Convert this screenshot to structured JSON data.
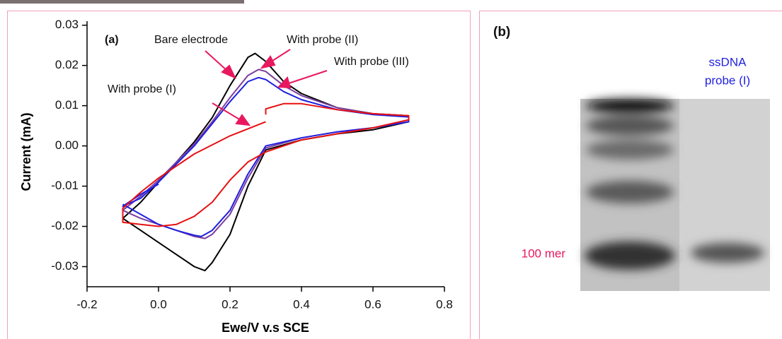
{
  "chart_data": {
    "type": "line",
    "panel_label": "(a)",
    "x_label": "Ewe/V v.s SCE",
    "y_label": "Current (mA)",
    "xlim": [
      -0.2,
      0.8
    ],
    "ylim": [
      -0.035,
      0.031
    ],
    "xticks": [
      {
        "value": -0.2,
        "label": "-0.2"
      },
      {
        "value": 0,
        "label": "0.0"
      },
      {
        "value": 0.2,
        "label": "0.2"
      },
      {
        "value": 0.4,
        "label": "0.4"
      },
      {
        "value": 0.6,
        "label": "0.6"
      },
      {
        "value": 0.8,
        "label": "0.8"
      }
    ],
    "yticks": [
      {
        "value": 0.03,
        "label": "0.03"
      },
      {
        "value": 0.02,
        "label": "0.02"
      },
      {
        "value": 0.01,
        "label": "0.01"
      },
      {
        "value": 0,
        "label": "0.00"
      },
      {
        "value": -0.01,
        "label": "-0.01"
      },
      {
        "value": -0.02,
        "label": "-0.02"
      },
      {
        "value": -0.03,
        "label": "-0.03"
      }
    ],
    "series": [
      {
        "name": "Bare electrode",
        "color": "#000000",
        "x": [
          -0.1,
          -0.05,
          0,
          0.05,
          0.1,
          0.15,
          0.2,
          0.25,
          0.27,
          0.3,
          0.35,
          0.4,
          0.5,
          0.6,
          0.7,
          0.7,
          0.6,
          0.5,
          0.4,
          0.3,
          0.25,
          0.2,
          0.15,
          0.13,
          0.1,
          0.05,
          0,
          -0.05,
          -0.1
        ],
        "values": [
          -0.018,
          -0.014,
          -0.009,
          -0.004,
          0.001,
          0.007,
          0.015,
          0.022,
          0.023,
          0.021,
          0.016,
          0.013,
          0.0095,
          0.008,
          0.0075,
          0.006,
          0.004,
          0.003,
          0.0015,
          -0.001,
          -0.01,
          -0.022,
          -0.029,
          -0.031,
          -0.03,
          -0.027,
          -0.024,
          -0.021,
          -0.018
        ]
      },
      {
        "name": "With probe (II)",
        "color": "#7b3fa0",
        "x": [
          -0.1,
          -0.05,
          0,
          0.05,
          0.1,
          0.15,
          0.2,
          0.25,
          0.28,
          0.3,
          0.35,
          0.4,
          0.5,
          0.6,
          0.7,
          0.7,
          0.6,
          0.5,
          0.4,
          0.3,
          0.25,
          0.2,
          0.15,
          0.13,
          0.1,
          0.05,
          0,
          -0.05,
          -0.1
        ],
        "values": [
          -0.016,
          -0.0125,
          -0.0085,
          -0.004,
          0.0005,
          0.006,
          0.012,
          0.0175,
          0.019,
          0.0185,
          0.015,
          0.0125,
          0.0095,
          0.008,
          0.0075,
          0.006,
          0.0045,
          0.0035,
          0.002,
          -0.0005,
          -0.008,
          -0.017,
          -0.022,
          -0.023,
          -0.0225,
          -0.021,
          -0.0195,
          -0.018,
          -0.016
        ]
      },
      {
        "name": "With probe (III)",
        "color": "#1f1fe0",
        "x": [
          0,
          -0.05,
          -0.1,
          -0.05,
          0,
          0.05,
          0.1,
          0.15,
          0.2,
          0.25,
          0.28,
          0.3,
          0.35,
          0.4,
          0.5,
          0.6,
          0.7,
          0.7,
          0.6,
          0.5,
          0.4,
          0.3,
          0.25,
          0.2,
          0.15,
          0.12,
          0.1,
          0.05,
          0,
          -0.05,
          -0.1
        ],
        "values": [
          -0.0095,
          -0.012,
          -0.015,
          -0.013,
          -0.009,
          -0.0045,
          0,
          0.0055,
          0.011,
          0.016,
          0.017,
          0.0165,
          0.0135,
          0.0115,
          0.009,
          0.0078,
          0.0072,
          0.006,
          0.0045,
          0.0035,
          0.002,
          0,
          -0.007,
          -0.016,
          -0.021,
          -0.0225,
          -0.0222,
          -0.021,
          -0.0195,
          -0.017,
          -0.0145
        ]
      },
      {
        "name": "With probe (I)",
        "color": "#e81010",
        "x": [
          0.3,
          0.2,
          0.1,
          0,
          -0.05,
          -0.1,
          -0.1,
          -0.05,
          0,
          0.05,
          0.1,
          0.15,
          0.2,
          0.25,
          0.3,
          0.35,
          0.4,
          0.5,
          0.6,
          0.7,
          0.7,
          0.6,
          0.5,
          0.4,
          0.35,
          0.3,
          0.3
        ],
        "values": [
          0.006,
          0.0025,
          -0.002,
          -0.008,
          -0.0115,
          -0.0155,
          -0.019,
          -0.0195,
          -0.02,
          -0.0195,
          -0.0175,
          -0.014,
          -0.0085,
          -0.004,
          -0.0015,
          0,
          0.0015,
          0.003,
          0.0045,
          0.0065,
          0.0075,
          0.008,
          0.009,
          0.0105,
          0.0105,
          0.0092,
          0.0078
        ]
      }
    ]
  },
  "panel_b": {
    "label": "(b)",
    "lane_label": [
      "ssDNA",
      "probe (I)"
    ],
    "marker_label": "100 mer"
  }
}
